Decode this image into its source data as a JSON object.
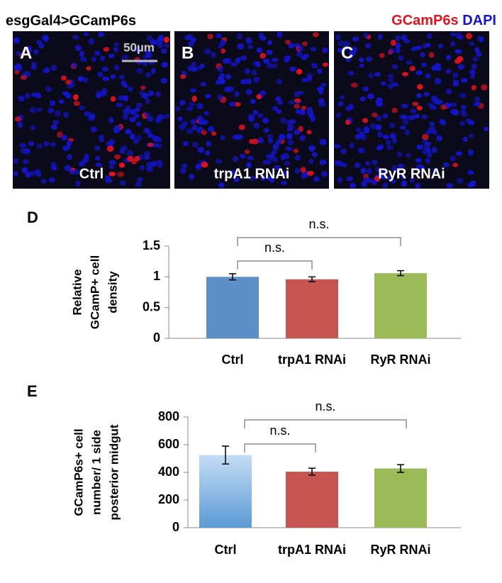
{
  "figure": {
    "title": "esgGal4>GCamP6s",
    "legend": [
      {
        "text": "GCamP6s",
        "color": "#e3131f"
      },
      {
        "text": "DAPI",
        "color": "#1414c8"
      }
    ],
    "panels": [
      {
        "letter": "A",
        "label": "Ctrl",
        "scale_bar": "50µm"
      },
      {
        "letter": "B",
        "label": "trpA1 RNAi"
      },
      {
        "letter": "C",
        "label": "RyR RNAi"
      }
    ]
  },
  "chart_data": [
    {
      "type": "bar",
      "panel": "D",
      "ylabel": [
        "Relative",
        "GCamP+ cell",
        "density"
      ],
      "categories": [
        "Ctrl",
        "trpA1 RNAi",
        "RyR RNAi"
      ],
      "values": [
        1.0,
        0.96,
        1.06
      ],
      "errors": [
        0.05,
        0.04,
        0.04
      ],
      "colors": [
        "#5b8fc6",
        "#c65552",
        "#9bbb59"
      ],
      "ylim": [
        0,
        1.5
      ],
      "yticks": [
        0,
        0.5,
        1,
        1.5
      ],
      "annotations": [
        "n.s.",
        "n.s."
      ]
    },
    {
      "type": "bar",
      "panel": "E",
      "ylabel": [
        "GCamP6s+ cell",
        "number/ 1 side",
        "posterior midgut"
      ],
      "categories": [
        "Ctrl",
        "trpA1 RNAi",
        "RyR RNAi"
      ],
      "values": [
        525,
        405,
        428
      ],
      "errors": [
        65,
        25,
        28
      ],
      "colors": [
        "#5b9bd5",
        "#c65552",
        "#9bbb59"
      ],
      "ylim": [
        0,
        800
      ],
      "yticks": [
        0,
        200,
        400,
        600,
        800
      ],
      "annotations": [
        "n.s.",
        "n.s."
      ]
    }
  ]
}
